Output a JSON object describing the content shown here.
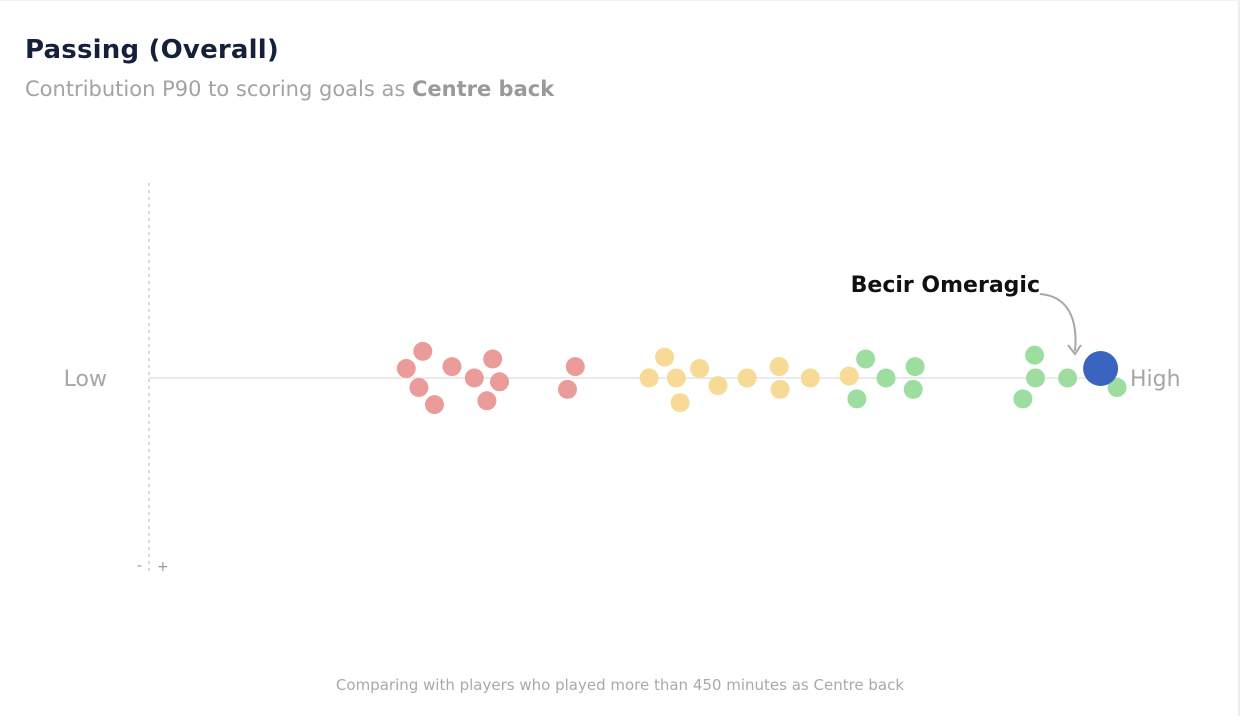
{
  "header": {
    "title": "Passing (Overall)",
    "subtitle_prefix": "Contribution P90 to scoring goals as ",
    "subtitle_position": "Centre back"
  },
  "footer": {
    "note": "Comparing with players who played more than 450 minutes as Centre back"
  },
  "chart_data": {
    "type": "scatter",
    "title": "Passing (Overall)",
    "subtitle": "Contribution P90 to scoring goals as Centre back",
    "xlabel": "",
    "ylabel": "",
    "x_axis_low_label": "Low",
    "x_axis_high_label": "High",
    "y_axis_minus_label": "-",
    "y_axis_plus_label": "+",
    "xlim": [
      0,
      100
    ],
    "ylim": [
      -10,
      10
    ],
    "grid": false,
    "colors": {
      "low": "#eb9c9a",
      "mid": "#f6da96",
      "high": "#9ddd9f",
      "highlight": "#3a64c0"
    },
    "highlight": {
      "name": "Becir Omeragic",
      "x": 98.0,
      "y": 0.5
    },
    "series": [
      {
        "group": "low",
        "points": [
          {
            "x": 26.5,
            "y": 0.5
          },
          {
            "x": 28.2,
            "y": 1.4
          },
          {
            "x": 27.8,
            "y": -0.5
          },
          {
            "x": 29.4,
            "y": -1.4
          },
          {
            "x": 31.2,
            "y": 0.6
          },
          {
            "x": 33.5,
            "y": 0.0
          },
          {
            "x": 35.4,
            "y": 1.0
          },
          {
            "x": 34.8,
            "y": -1.2
          },
          {
            "x": 36.1,
            "y": -0.2
          },
          {
            "x": 43.9,
            "y": 0.6
          },
          {
            "x": 43.1,
            "y": -0.6
          }
        ]
      },
      {
        "group": "mid",
        "points": [
          {
            "x": 51.5,
            "y": 0.0
          },
          {
            "x": 53.1,
            "y": 1.1
          },
          {
            "x": 54.3,
            "y": 0.0
          },
          {
            "x": 54.7,
            "y": -1.3
          },
          {
            "x": 56.7,
            "y": 0.5
          },
          {
            "x": 58.6,
            "y": -0.4
          },
          {
            "x": 61.6,
            "y": 0.0
          },
          {
            "x": 64.9,
            "y": 0.6
          },
          {
            "x": 65.0,
            "y": -0.6
          },
          {
            "x": 68.1,
            "y": 0.0
          },
          {
            "x": 72.1,
            "y": 0.1
          }
        ]
      },
      {
        "group": "high",
        "points": [
          {
            "x": 73.8,
            "y": 1.0
          },
          {
            "x": 72.9,
            "y": -1.1
          },
          {
            "x": 75.9,
            "y": 0.0
          },
          {
            "x": 78.9,
            "y": 0.6
          },
          {
            "x": 78.7,
            "y": -0.6
          },
          {
            "x": 91.2,
            "y": 1.2
          },
          {
            "x": 91.3,
            "y": 0.0
          },
          {
            "x": 90.0,
            "y": -1.1
          },
          {
            "x": 94.6,
            "y": 0.0
          },
          {
            "x": 99.7,
            "y": -0.5
          }
        ]
      }
    ]
  }
}
